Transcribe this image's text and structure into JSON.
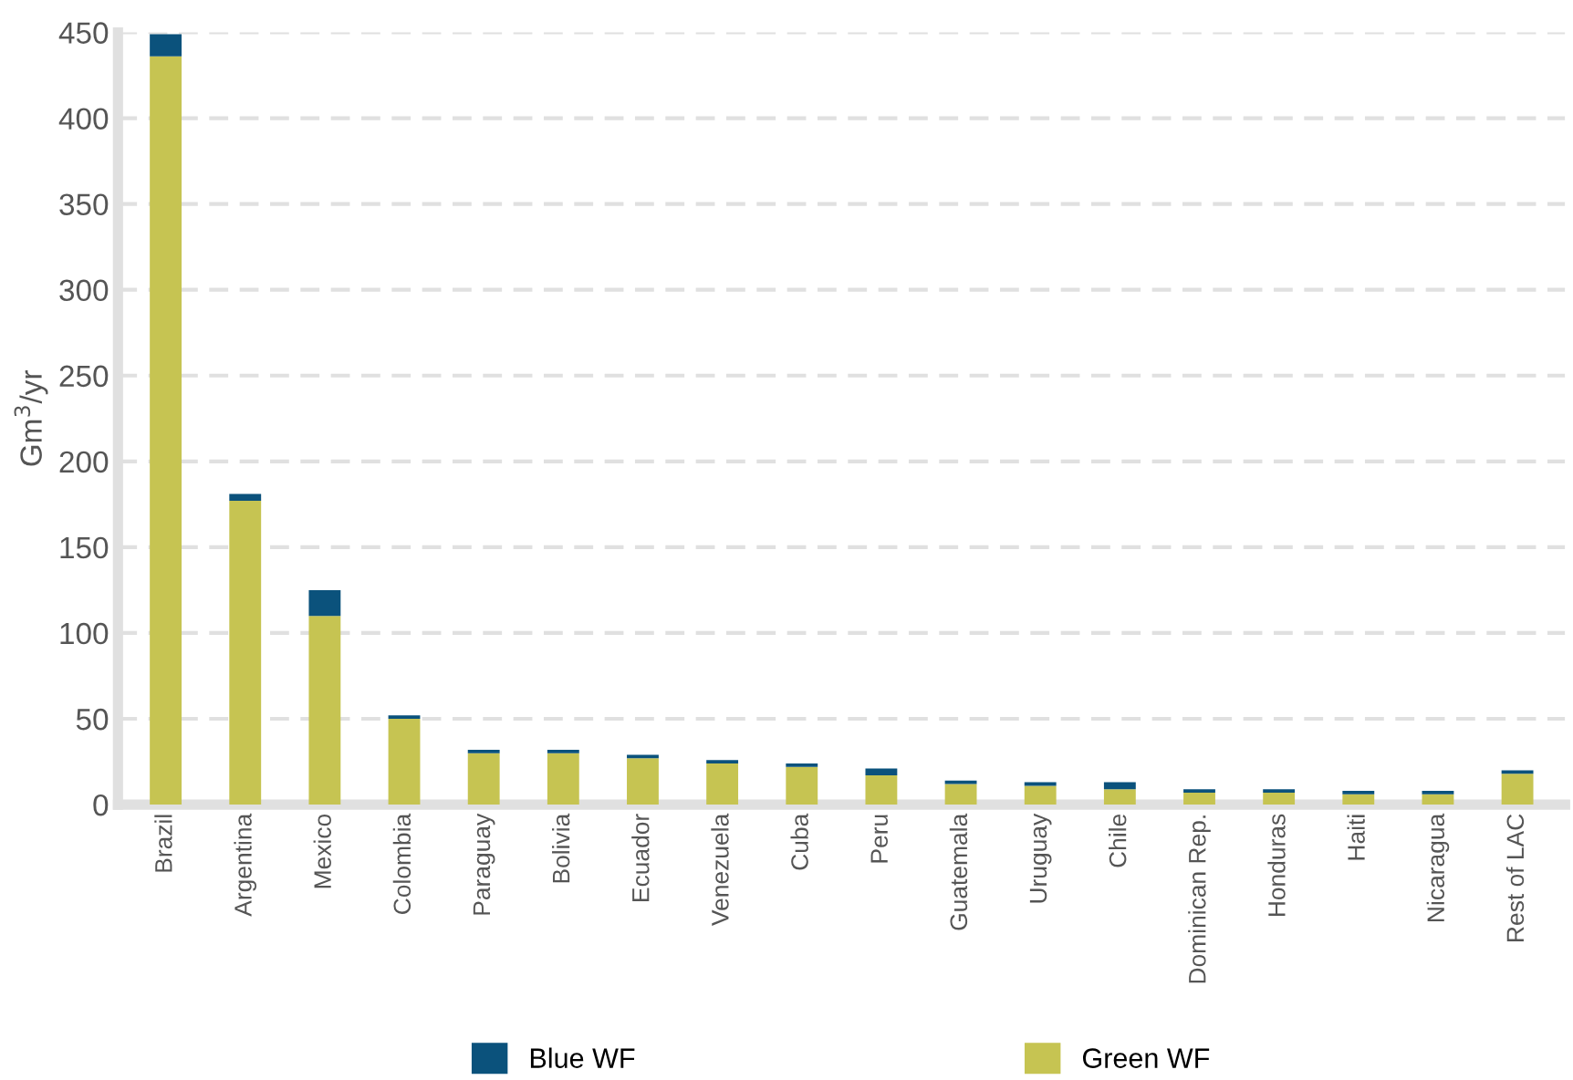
{
  "chart_data": {
    "type": "bar",
    "stacked": true,
    "ylabel": "Gm$^{3}$/yr",
    "categories": [
      "Brazil",
      "Argentina",
      "Mexico",
      "Colombia",
      "Paraguay",
      "Bolivia",
      "Ecuador",
      "Venezuela",
      "Cuba",
      "Peru",
      "Guatemala",
      "Uruguay",
      "Chile",
      "Dominican Rep.",
      "Honduras",
      "Haiti",
      "Nicaragua",
      "Rest of LAC"
    ],
    "series": [
      {
        "name": "Green WF",
        "color": "#c6c452",
        "values": [
          436,
          177,
          110,
          50,
          30,
          30,
          27,
          24,
          22,
          17,
          12,
          11,
          9,
          7,
          7,
          6,
          6,
          18
        ]
      },
      {
        "name": "Blue WF",
        "color": "#0b527c",
        "values": [
          13,
          4,
          15,
          2,
          2,
          2,
          2,
          2,
          2,
          4,
          2,
          2,
          4,
          2,
          2,
          2,
          2,
          2
        ]
      }
    ],
    "ylim": [
      0,
      450
    ],
    "yticks": [
      0,
      50,
      100,
      150,
      200,
      250,
      300,
      350,
      400,
      450
    ],
    "grid": "y",
    "legend": "bottom"
  }
}
